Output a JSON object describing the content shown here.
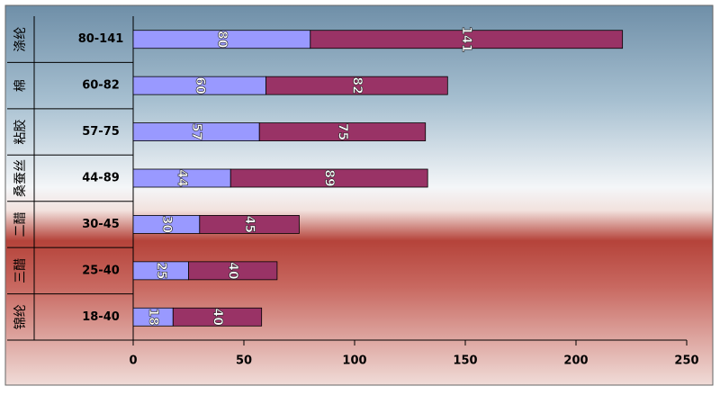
{
  "chart_data": {
    "type": "bar",
    "orientation": "horizontal",
    "stacked": true,
    "groups": [
      "涤纶",
      "棉",
      "粘胶",
      "桑蚕丝",
      "二醋",
      "三醋",
      "锦纶"
    ],
    "categories": [
      "80-141",
      "60-82",
      "57-75",
      "44-89",
      "30-45",
      "25-40",
      "18-40"
    ],
    "series": [
      {
        "color": "#9999ff",
        "values": [
          80,
          60,
          57,
          44,
          30,
          25,
          18
        ]
      },
      {
        "color": "#993366",
        "values": [
          141,
          82,
          75,
          89,
          45,
          40,
          40
        ]
      }
    ],
    "xlim": [
      0,
      250
    ],
    "xticks": [
      0,
      50,
      100,
      150,
      200,
      250
    ],
    "grid": false
  }
}
